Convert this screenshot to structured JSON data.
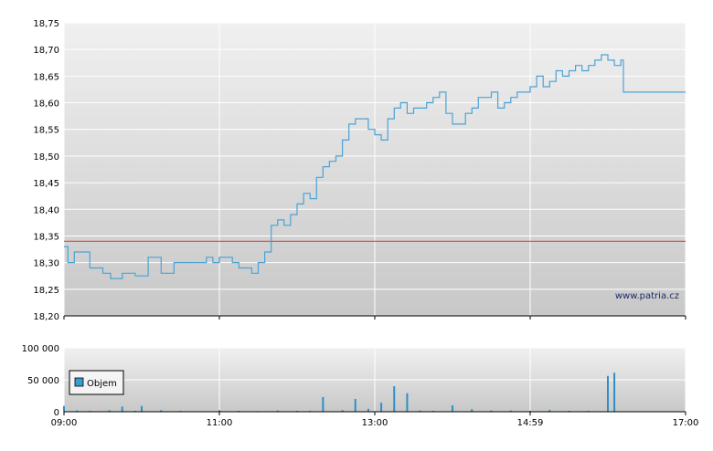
{
  "watermark": "www.patria.cz",
  "colors": {
    "price_line": "#4aa3d6",
    "reference_line": "#d94a4a",
    "volume_bar": "#2f8fc4",
    "legend_swatch": "#3a9bd0"
  },
  "chart_data": [
    {
      "type": "line",
      "title": "",
      "xlabel": "",
      "ylabel": "",
      "x_tick_labels": [
        "09:00",
        "11:00",
        "13:00",
        "14:59",
        "17:00"
      ],
      "y_tick_labels": [
        "18,20",
        "18,25",
        "18,30",
        "18,35",
        "18,40",
        "18,45",
        "18,50",
        "18,55",
        "18,60",
        "18,65",
        "18,70",
        "18,75"
      ],
      "xlim": [
        "09:00",
        "17:00"
      ],
      "ylim": [
        18.2,
        18.75
      ],
      "grid": true,
      "reference_value": 18.34,
      "series": [
        {
          "x": [
            "09:00",
            "09:03",
            "09:08",
            "09:15",
            "09:20",
            "09:25",
            "09:30",
            "09:36",
            "09:45",
            "09:55",
            "10:00",
            "10:05",
            "10:08",
            "10:15",
            "10:20",
            "10:25",
            "10:30",
            "10:40",
            "10:50",
            "10:55",
            "11:00",
            "11:05",
            "11:10",
            "11:15",
            "11:20",
            "11:25",
            "11:30",
            "11:35",
            "11:40",
            "11:45",
            "11:50",
            "11:55",
            "12:00",
            "12:05",
            "12:10",
            "12:15",
            "12:20",
            "12:25",
            "12:30",
            "12:35",
            "12:40",
            "12:45",
            "12:50",
            "12:55",
            "13:00",
            "13:05",
            "13:10",
            "13:15",
            "13:20",
            "13:25",
            "13:30",
            "13:35",
            "13:40",
            "13:45",
            "13:50",
            "13:55",
            "14:00",
            "14:05",
            "14:10",
            "14:15",
            "14:20",
            "14:25",
            "14:30",
            "14:35",
            "14:40",
            "14:45",
            "14:50",
            "14:55",
            "15:00",
            "15:05",
            "15:10",
            "15:15",
            "15:20",
            "15:25",
            "15:30",
            "15:35",
            "15:40",
            "15:45",
            "15:50",
            "15:55",
            "16:00",
            "16:05",
            "16:10",
            "16:12",
            "16:15",
            "16:20",
            "17:00"
          ],
          "y": [
            18.33,
            18.3,
            18.32,
            18.32,
            18.29,
            18.29,
            18.28,
            18.27,
            18.28,
            18.275,
            18.275,
            18.31,
            18.31,
            18.28,
            18.28,
            18.3,
            18.3,
            18.3,
            18.31,
            18.3,
            18.31,
            18.31,
            18.3,
            18.29,
            18.29,
            18.28,
            18.3,
            18.32,
            18.37,
            18.38,
            18.37,
            18.39,
            18.41,
            18.43,
            18.42,
            18.46,
            18.48,
            18.49,
            18.5,
            18.53,
            18.56,
            18.57,
            18.57,
            18.55,
            18.54,
            18.53,
            18.57,
            18.59,
            18.6,
            18.58,
            18.59,
            18.59,
            18.6,
            18.61,
            18.62,
            18.58,
            18.56,
            18.56,
            18.58,
            18.59,
            18.61,
            18.61,
            18.62,
            18.59,
            18.6,
            18.61,
            18.62,
            18.62,
            18.63,
            18.65,
            18.63,
            18.64,
            18.66,
            18.65,
            18.66,
            18.67,
            18.66,
            18.67,
            18.68,
            18.69,
            18.68,
            18.67,
            18.68,
            18.62,
            18.62,
            18.62,
            18.62
          ]
        }
      ]
    },
    {
      "type": "bar",
      "title": "",
      "xlabel": "",
      "ylabel": "",
      "legend": [
        "Objem"
      ],
      "legend_placement": "left",
      "y_tick_labels": [
        "0",
        "50 000",
        "100 000"
      ],
      "ylim": [
        0,
        100000
      ],
      "grid": true,
      "x": [
        "09:00",
        "09:10",
        "09:20",
        "09:35",
        "09:45",
        "09:55",
        "10:00",
        "10:15",
        "10:30",
        "10:45",
        "11:00",
        "11:15",
        "11:30",
        "11:45",
        "12:00",
        "12:10",
        "12:20",
        "12:35",
        "12:45",
        "12:55",
        "13:05",
        "13:15",
        "13:25",
        "13:35",
        "13:45",
        "14:00",
        "14:15",
        "14:30",
        "14:45",
        "15:00",
        "15:15",
        "15:30",
        "15:45",
        "16:00",
        "16:05"
      ],
      "values": [
        9000,
        2000,
        1500,
        2500,
        8000,
        1500,
        9000,
        2500,
        1500,
        1000,
        2500,
        1500,
        1000,
        2000,
        1500,
        1500,
        23000,
        2500,
        20000,
        4500,
        14000,
        40000,
        29000,
        2000,
        1500,
        10000,
        4000,
        2000,
        2000,
        1500,
        3000,
        1500,
        1500,
        56000,
        61000
      ]
    }
  ]
}
